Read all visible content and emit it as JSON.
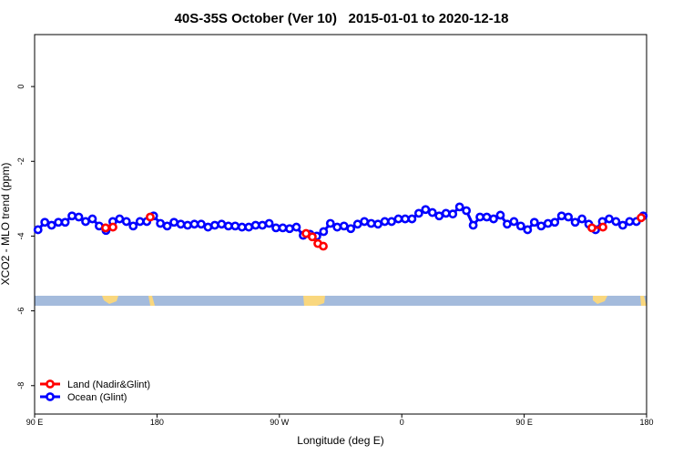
{
  "chart_data": {
    "type": "line",
    "title": "40S-35S October (Ver 10)   2015-01-01 to 2020-12-18",
    "xlabel": "Longitude (deg E)",
    "ylabel": "XCO2 - MLO trend (ppm)",
    "xlim": [
      90,
      540
    ],
    "ylim": [
      -8.76,
      1.39
    ],
    "xticks": [
      {
        "value": 90,
        "label": "90 E"
      },
      180,
      {
        "value": 270,
        "label": "90 W"
      },
      {
        "value": 360,
        "label": "0"
      },
      {
        "value": 450,
        "label": "90 E"
      },
      {
        "value": 540,
        "label": "180"
      }
    ],
    "yticks": [
      0,
      -2,
      -4,
      -6,
      -8
    ],
    "legend": "bottom-left",
    "series": [
      {
        "name": "Land (Nadir&Glint)",
        "color": "#ff0000",
        "x": [
          142.2,
          147.6,
          175,
          289.6,
          294.2,
          298.3,
          302.3,
          499.8,
          507.9,
          536
        ],
        "values": [
          -3.78,
          -3.76,
          -3.49,
          -3.93,
          -4.02,
          -4.2,
          -4.27,
          -3.78,
          -3.76,
          -3.51
        ]
      },
      {
        "name": "Ocean (Glint)",
        "color": "#0000ff",
        "x": [
          92.5,
          97.5,
          102.5,
          107.5,
          112.5,
          117.5,
          122.5,
          127.5,
          132.5,
          137.5,
          142.5,
          147.5,
          152.5,
          157.5,
          162.5,
          167.5,
          172.5,
          177.5,
          182.5,
          187.5,
          192.5,
          197.5,
          202.5,
          207.5,
          212.5,
          217.5,
          222.5,
          227.5,
          232.5,
          237.5,
          242.5,
          247.5,
          252.5,
          257.5,
          262.5,
          267.5,
          272.5,
          277.5,
          282.5,
          287.5,
          292.5,
          297.5,
          302.5,
          307.5,
          312.5,
          317.5,
          322.5,
          327.5,
          332.5,
          337.5,
          342.5,
          347.5,
          352.5,
          357.5,
          362.5,
          367.5,
          372.5,
          377.5,
          382.5,
          387.5,
          392.5,
          397.5,
          402.5,
          407.5,
          412.5,
          417.5,
          422.5,
          427.5,
          432.5,
          437.5,
          442.5,
          447.5,
          452.5,
          457.5,
          462.5,
          467.5,
          472.5,
          477.5,
          482.5,
          487.5,
          492.5,
          497.5,
          502.5,
          507.5,
          512.5,
          517.5,
          522.5,
          527.5,
          532.5,
          537.5
        ],
        "values": [
          -3.83,
          -3.63,
          -3.71,
          -3.63,
          -3.63,
          -3.46,
          -3.49,
          -3.61,
          -3.54,
          -3.73,
          -3.85,
          -3.61,
          -3.54,
          -3.61,
          -3.73,
          -3.61,
          -3.61,
          -3.46,
          -3.66,
          -3.73,
          -3.63,
          -3.68,
          -3.71,
          -3.68,
          -3.68,
          -3.76,
          -3.71,
          -3.68,
          -3.73,
          -3.73,
          -3.76,
          -3.76,
          -3.71,
          -3.71,
          -3.66,
          -3.78,
          -3.78,
          -3.8,
          -3.76,
          -3.98,
          -3.95,
          -4.0,
          -3.88,
          -3.66,
          -3.76,
          -3.73,
          -3.8,
          -3.68,
          -3.61,
          -3.66,
          -3.68,
          -3.61,
          -3.61,
          -3.54,
          -3.54,
          -3.54,
          -3.39,
          -3.29,
          -3.37,
          -3.46,
          -3.39,
          -3.41,
          -3.22,
          -3.32,
          -3.71,
          -3.49,
          -3.49,
          -3.54,
          -3.44,
          -3.68,
          -3.61,
          -3.73,
          -3.83,
          -3.63,
          -3.73,
          -3.66,
          -3.63,
          -3.46,
          -3.49,
          -3.63,
          -3.54,
          -3.68,
          -3.83,
          -3.61,
          -3.54,
          -3.61,
          -3.71,
          -3.61,
          -3.61,
          -3.46
        ]
      }
    ]
  }
}
